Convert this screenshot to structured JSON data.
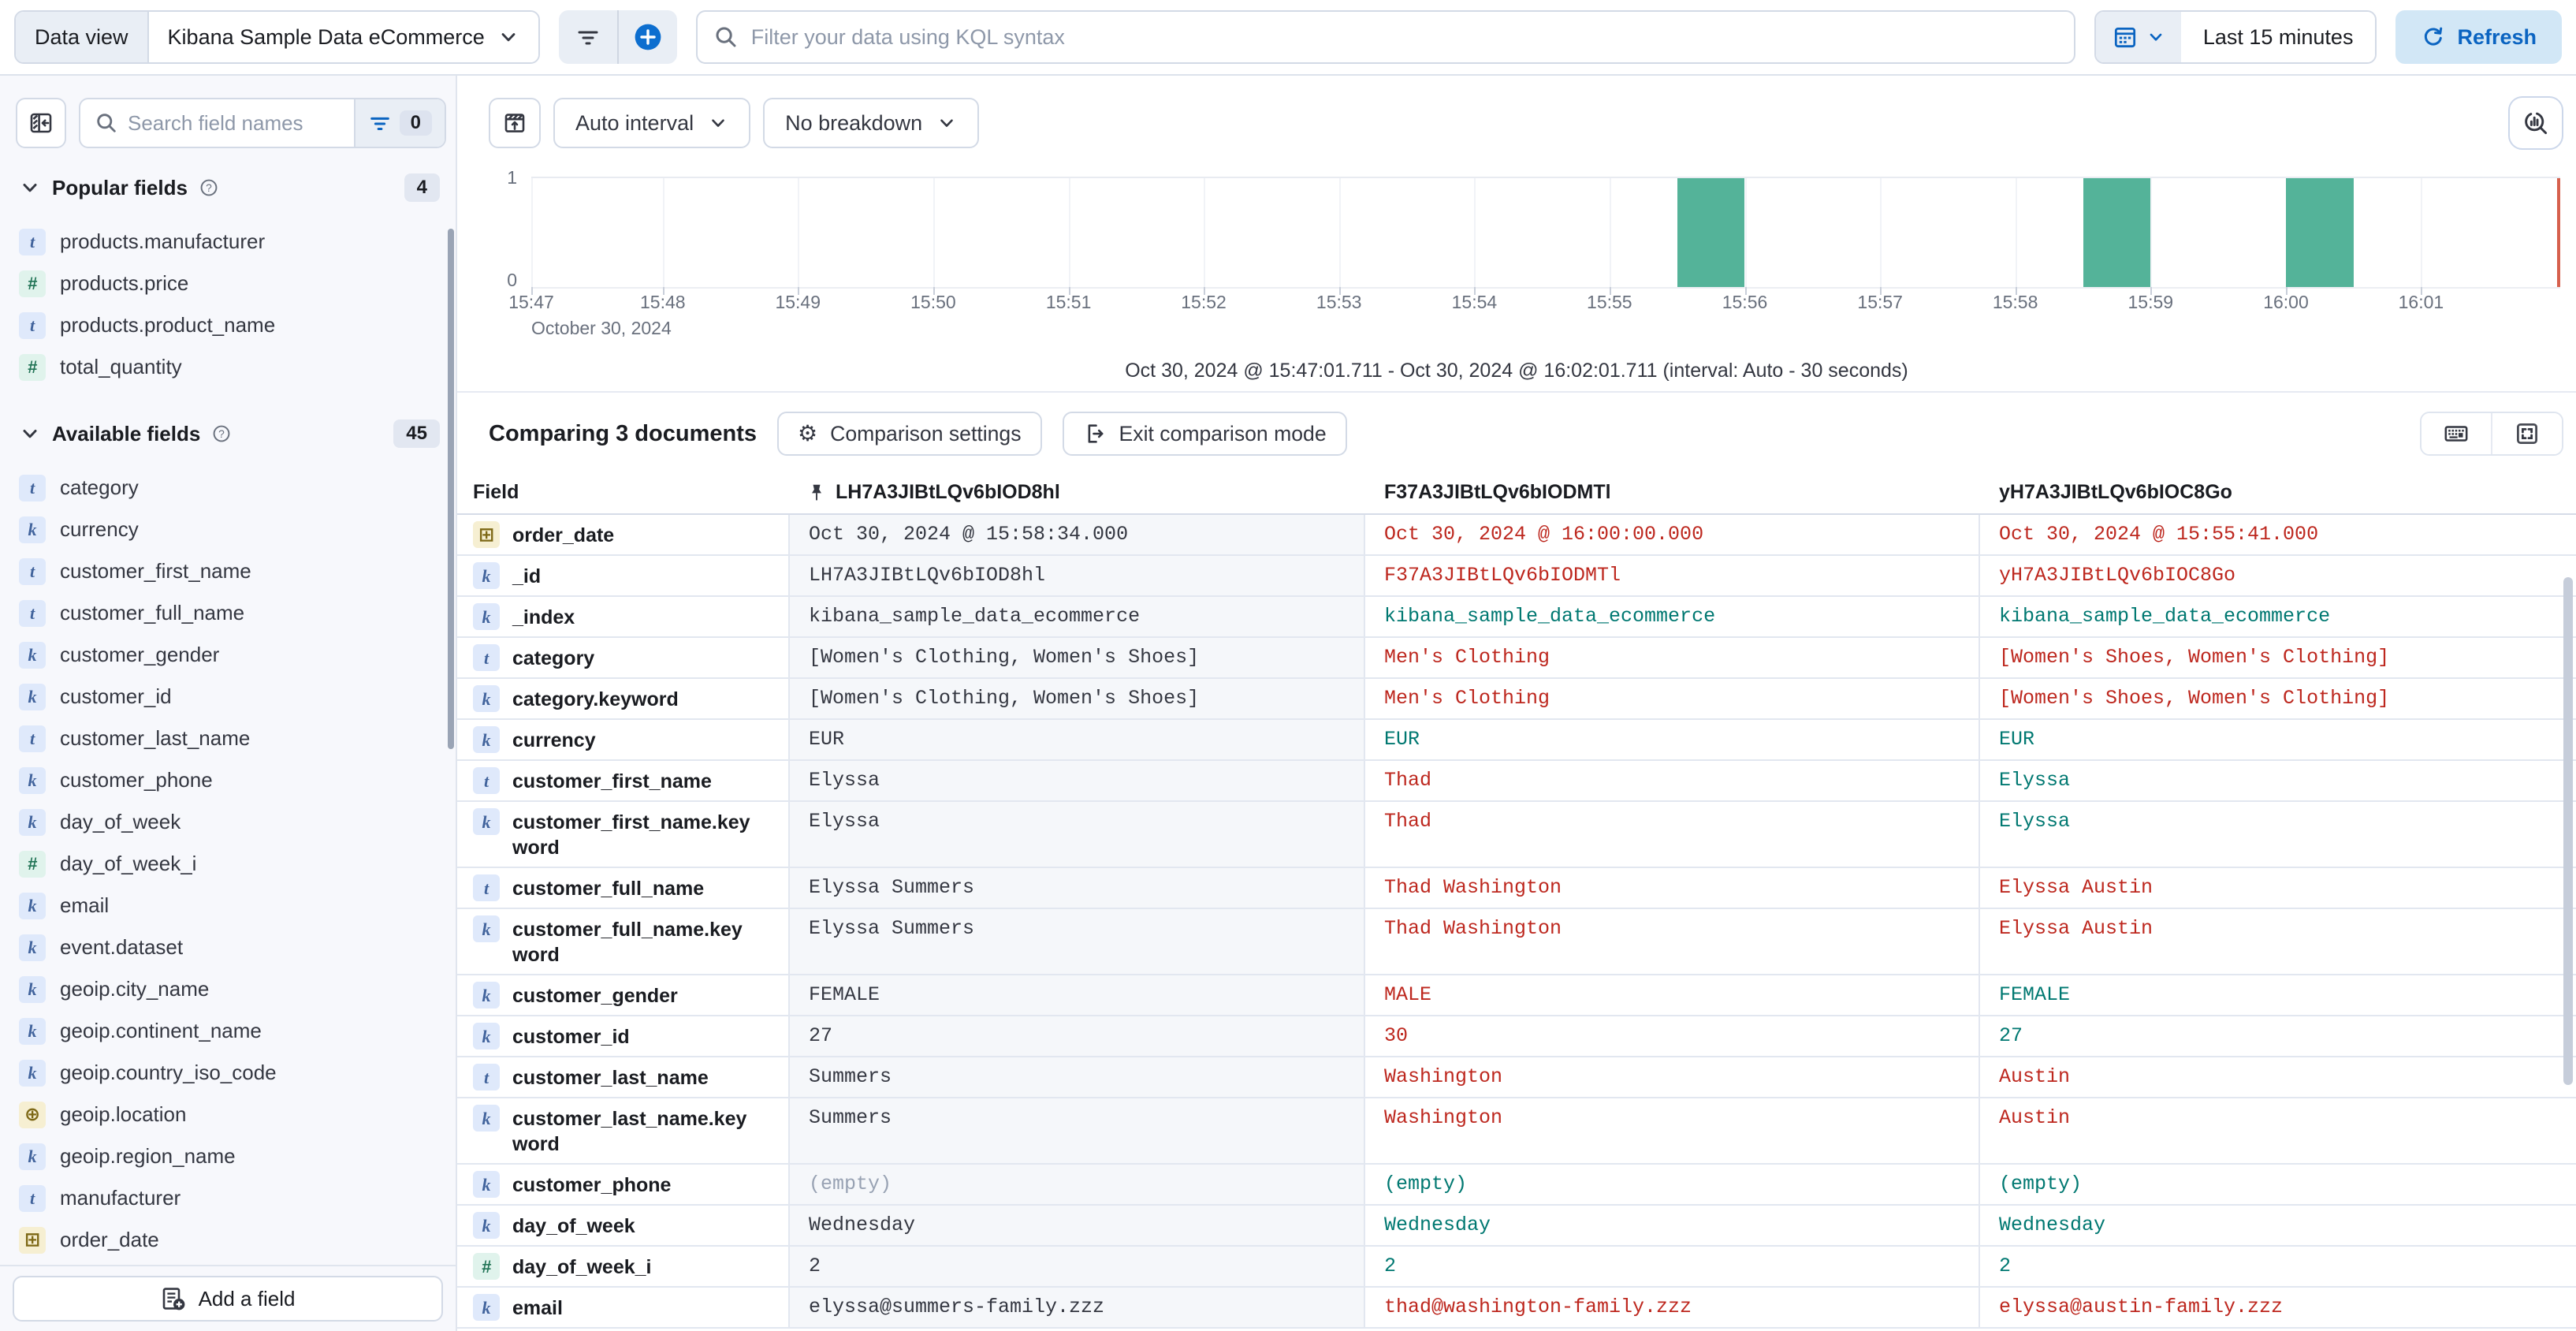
{
  "colors": {
    "accent": "#0d6ecf",
    "bar": "#54b399",
    "diff_text": "#bd271e",
    "match_text": "#007871",
    "now_line": "#d6604d"
  },
  "topbar": {
    "data_view_label": "Data view",
    "data_view_value": "Kibana Sample Data eCommerce",
    "kql_placeholder": "Filter your data using KQL syntax",
    "time_range": "Last 15 minutes",
    "refresh_label": "Refresh"
  },
  "sidebar": {
    "search_placeholder": "Search field names",
    "filter_count": "0",
    "sections": [
      {
        "title": "Popular fields",
        "count": "4",
        "items": [
          {
            "type": "t",
            "name": "products.manufacturer"
          },
          {
            "type": "num",
            "name": "products.price"
          },
          {
            "type": "t",
            "name": "products.product_name"
          },
          {
            "type": "num",
            "name": "total_quantity"
          }
        ]
      },
      {
        "title": "Available fields",
        "count": "45",
        "items": [
          {
            "type": "t",
            "name": "category"
          },
          {
            "type": "k",
            "name": "currency"
          },
          {
            "type": "t",
            "name": "customer_first_name"
          },
          {
            "type": "t",
            "name": "customer_full_name"
          },
          {
            "type": "k",
            "name": "customer_gender"
          },
          {
            "type": "k",
            "name": "customer_id"
          },
          {
            "type": "t",
            "name": "customer_last_name"
          },
          {
            "type": "k",
            "name": "customer_phone"
          },
          {
            "type": "k",
            "name": "day_of_week"
          },
          {
            "type": "num",
            "name": "day_of_week_i"
          },
          {
            "type": "k",
            "name": "email"
          },
          {
            "type": "k",
            "name": "event.dataset"
          },
          {
            "type": "k",
            "name": "geoip.city_name"
          },
          {
            "type": "k",
            "name": "geoip.continent_name"
          },
          {
            "type": "k",
            "name": "geoip.country_iso_code"
          },
          {
            "type": "geo",
            "name": "geoip.location"
          },
          {
            "type": "k",
            "name": "geoip.region_name"
          },
          {
            "type": "t",
            "name": "manufacturer"
          },
          {
            "type": "date",
            "name": "order_date"
          }
        ]
      }
    ],
    "add_field_label": "Add a field"
  },
  "chart_toolbar": {
    "interval_label": "Auto interval",
    "breakdown_label": "No breakdown"
  },
  "chart_data": {
    "type": "bar",
    "title": "",
    "xlabel": "",
    "ylabel": "",
    "ylim": [
      0,
      1
    ],
    "y_ticks": [
      "1",
      "0"
    ],
    "x_range": [
      "15:47:01.711",
      "16:02:01.711"
    ],
    "x_date_label": "October 30, 2024",
    "interval_seconds": 30,
    "grid": true,
    "ticks": [
      {
        "label": "15:47",
        "pct": 0
      },
      {
        "label": "15:48",
        "pct": 6.48
      },
      {
        "label": "15:49",
        "pct": 13.14
      },
      {
        "label": "15:50",
        "pct": 19.81
      },
      {
        "label": "15:51",
        "pct": 26.48
      },
      {
        "label": "15:52",
        "pct": 33.14
      },
      {
        "label": "15:53",
        "pct": 39.81
      },
      {
        "label": "15:54",
        "pct": 46.48
      },
      {
        "label": "15:55",
        "pct": 53.14
      },
      {
        "label": "15:56",
        "pct": 59.81
      },
      {
        "label": "15:57",
        "pct": 66.48
      },
      {
        "label": "15:58",
        "pct": 73.14
      },
      {
        "label": "15:59",
        "pct": 79.81
      },
      {
        "label": "16:00",
        "pct": 86.48
      },
      {
        "label": "16:01",
        "pct": 93.14
      }
    ],
    "bars": [
      {
        "time": "15:55:30",
        "value": 1,
        "pct": 56.48
      },
      {
        "time": "15:58:30",
        "value": 1,
        "pct": 76.48
      },
      {
        "time": "16:00:00",
        "value": 1,
        "pct": 86.48
      }
    ],
    "bar_width_pct": 3.33,
    "now_line_pct": 100,
    "caption": "Oct 30, 2024 @ 15:47:01.711 - Oct 30, 2024 @ 16:02:01.711 (interval: Auto - 30 seconds)"
  },
  "comparison": {
    "title": "Comparing 3 documents",
    "settings_label": "Comparison settings",
    "exit_label": "Exit comparison mode",
    "field_header": "Field",
    "doc_columns": [
      {
        "id": "LH7A3JIBtLQv6bIOD8hl",
        "pinned": true
      },
      {
        "id": "F37A3JIBtLQv6bIODMTl",
        "pinned": false
      },
      {
        "id": "yH7A3JIBtLQv6bIOC8Go",
        "pinned": false
      }
    ],
    "rows": [
      {
        "field": "order_date",
        "type": "date",
        "base": "Oct 30, 2024 @ 15:58:34.000",
        "comps": [
          {
            "text": "Oct 30, 2024 @ 16:00:00.000",
            "state": "diff"
          },
          {
            "text": "Oct 30, 2024 @ 15:55:41.000",
            "state": "diff"
          }
        ]
      },
      {
        "field": "_id",
        "type": "k",
        "base": "LH7A3JIBtLQv6bIOD8hl",
        "comps": [
          {
            "text": "F37A3JIBtLQv6bIODMTl",
            "state": "diff"
          },
          {
            "text": "yH7A3JIBtLQv6bIOC8Go",
            "state": "diff"
          }
        ]
      },
      {
        "field": "_index",
        "type": "k",
        "base": "kibana_sample_data_ecommerce",
        "comps": [
          {
            "text": "kibana_sample_data_ecommerce",
            "state": "match"
          },
          {
            "text": "kibana_sample_data_ecommerce",
            "state": "match"
          }
        ]
      },
      {
        "field": "category",
        "type": "t",
        "base": "[Women's Clothing, Women's Shoes]",
        "comps": [
          {
            "text": "Men's Clothing",
            "state": "diff"
          },
          {
            "text": "[Women's Shoes, Women's Clothing]",
            "state": "diff"
          }
        ]
      },
      {
        "field": "category.keyword",
        "type": "k",
        "base": "[Women's Clothing, Women's Shoes]",
        "comps": [
          {
            "text": "Men's Clothing",
            "state": "diff"
          },
          {
            "text": "[Women's Shoes, Women's Clothing]",
            "state": "diff"
          }
        ]
      },
      {
        "field": "currency",
        "type": "k",
        "base": "EUR",
        "comps": [
          {
            "text": "EUR",
            "state": "match"
          },
          {
            "text": "EUR",
            "state": "match"
          }
        ]
      },
      {
        "field": "customer_first_name",
        "type": "t",
        "base": "Elyssa",
        "comps": [
          {
            "text": "Thad",
            "state": "diff"
          },
          {
            "text": "Elyssa",
            "state": "match"
          }
        ]
      },
      {
        "field": "customer_first_name.keyword",
        "type": "k",
        "base": "Elyssa",
        "comps": [
          {
            "text": "Thad",
            "state": "diff"
          },
          {
            "text": "Elyssa",
            "state": "match"
          }
        ]
      },
      {
        "field": "customer_full_name",
        "type": "t",
        "base": "Elyssa Summers",
        "comps": [
          {
            "text": "Thad Washington",
            "state": "diff"
          },
          {
            "text": "Elyssa Austin",
            "state": "diff"
          }
        ]
      },
      {
        "field": "customer_full_name.keyword",
        "type": "k",
        "base": "Elyssa Summers",
        "comps": [
          {
            "text": "Thad Washington",
            "state": "diff"
          },
          {
            "text": "Elyssa Austin",
            "state": "diff"
          }
        ]
      },
      {
        "field": "customer_gender",
        "type": "k",
        "base": "FEMALE",
        "comps": [
          {
            "text": "MALE",
            "state": "diff"
          },
          {
            "text": "FEMALE",
            "state": "match"
          }
        ]
      },
      {
        "field": "customer_id",
        "type": "k",
        "base": "27",
        "comps": [
          {
            "text": "30",
            "state": "diff"
          },
          {
            "text": "27",
            "state": "match"
          }
        ]
      },
      {
        "field": "customer_last_name",
        "type": "t",
        "base": "Summers",
        "comps": [
          {
            "text": "Washington",
            "state": "diff"
          },
          {
            "text": "Austin",
            "state": "diff"
          }
        ]
      },
      {
        "field": "customer_last_name.keyword",
        "type": "k",
        "base": "Summers",
        "comps": [
          {
            "text": "Washington",
            "state": "diff"
          },
          {
            "text": "Austin",
            "state": "diff"
          }
        ]
      },
      {
        "field": "customer_phone",
        "type": "k",
        "base": "(empty)",
        "base_muted": true,
        "comps": [
          {
            "text": "(empty)",
            "state": "match"
          },
          {
            "text": "(empty)",
            "state": "match"
          }
        ]
      },
      {
        "field": "day_of_week",
        "type": "k",
        "base": "Wednesday",
        "comps": [
          {
            "text": "Wednesday",
            "state": "match"
          },
          {
            "text": "Wednesday",
            "state": "match"
          }
        ]
      },
      {
        "field": "day_of_week_i",
        "type": "num",
        "base": "2",
        "comps": [
          {
            "text": "2",
            "state": "match"
          },
          {
            "text": "2",
            "state": "match"
          }
        ]
      },
      {
        "field": "email",
        "type": "k",
        "base": "elyssa@summers-family.zzz",
        "comps": [
          {
            "text": "thad@washington-family.zzz",
            "state": "diff"
          },
          {
            "text": "elyssa@austin-family.zzz",
            "state": "diff"
          }
        ]
      }
    ]
  }
}
